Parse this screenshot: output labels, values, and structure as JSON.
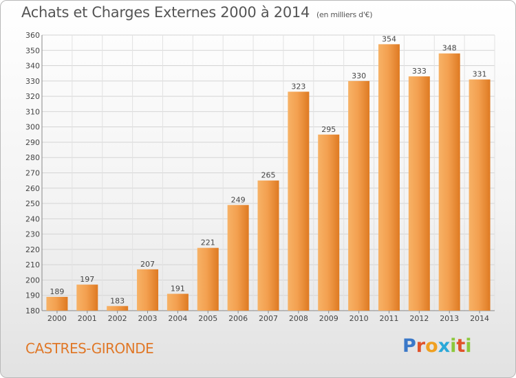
{
  "header": {
    "title": "Achats et Charges Externes 2000 à 2014",
    "subtitle": "(en milliers d'€)"
  },
  "footer": {
    "commune": "CASTRES-GIRONDE",
    "logo_text": "Proxiti",
    "logo_colors": [
      "#3a78c8",
      "#e0522a",
      "#f0a020",
      "#2aa8d8",
      "#8cc83c",
      "#e0522a",
      "#8cc83c"
    ]
  },
  "chart_data": {
    "type": "bar",
    "title": "Achats et Charges Externes 2000 à 2014",
    "subtitle": "(en milliers d'€)",
    "categories": [
      "2000",
      "2001",
      "2002",
      "2003",
      "2004",
      "2005",
      "2006",
      "2007",
      "2008",
      "2009",
      "2010",
      "2011",
      "2012",
      "2013",
      "2014"
    ],
    "values": [
      189,
      197,
      183,
      207,
      191,
      221,
      249,
      265,
      323,
      295,
      330,
      354,
      333,
      348,
      331
    ],
    "xlabel": "",
    "ylabel": "",
    "ylim": [
      180,
      360
    ],
    "yticks": [
      180,
      190,
      200,
      210,
      220,
      230,
      240,
      250,
      260,
      270,
      280,
      290,
      300,
      310,
      320,
      330,
      340,
      350,
      360
    ],
    "grid": true,
    "bar_color": "#f0a050",
    "bar_color_dark": "#d06a18"
  }
}
